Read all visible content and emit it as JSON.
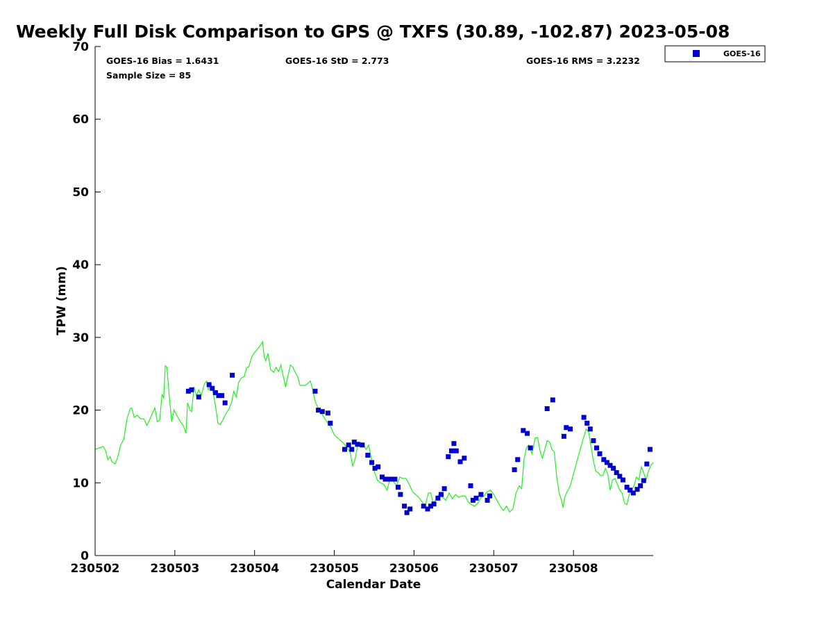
{
  "chart_data": {
    "type": "scatter",
    "title": "Weekly Full Disk Comparison to GPS @ TXFS (30.89, -102.87) 2023-05-08",
    "xlabel": "Calendar Date",
    "ylabel": "TPW (mm)",
    "xlim": [
      0,
      7
    ],
    "ylim": [
      0,
      70
    ],
    "x_ticks": [
      {
        "value": 0,
        "label": "230502"
      },
      {
        "value": 1,
        "label": "230503"
      },
      {
        "value": 2,
        "label": "230504"
      },
      {
        "value": 3,
        "label": "230505"
      },
      {
        "value": 4,
        "label": "230506"
      },
      {
        "value": 5,
        "label": "230507"
      },
      {
        "value": 6,
        "label": "230508"
      }
    ],
    "y_ticks": [
      0,
      10,
      20,
      30,
      40,
      50,
      60,
      70
    ],
    "legend": {
      "placement": "top-right outside",
      "entries": [
        "GOES-16"
      ]
    },
    "stats": {
      "bias": "GOES-16 Bias = 1.6431",
      "std": "GOES-16 StD = 2.773",
      "rms": "GOES-16 RMS = 3.2232",
      "sample": "Sample Size = 85"
    },
    "series": [
      {
        "name": "GOES-16",
        "kind": "scatter",
        "color": "#0000cc",
        "marker": "square",
        "points": [
          [
            1.17,
            22.6
          ],
          [
            1.21,
            22.8
          ],
          [
            1.3,
            21.8
          ],
          [
            1.43,
            23.5
          ],
          [
            1.47,
            23.0
          ],
          [
            1.51,
            22.4
          ],
          [
            1.55,
            22.0
          ],
          [
            1.59,
            22.0
          ],
          [
            1.63,
            21.0
          ],
          [
            1.72,
            24.8
          ],
          [
            2.76,
            22.6
          ],
          [
            2.8,
            20.0
          ],
          [
            2.85,
            19.8
          ],
          [
            2.92,
            19.6
          ],
          [
            2.95,
            18.2
          ],
          [
            3.13,
            14.6
          ],
          [
            3.18,
            15.2
          ],
          [
            3.22,
            14.6
          ],
          [
            3.25,
            15.6
          ],
          [
            3.29,
            15.3
          ],
          [
            3.35,
            15.2
          ],
          [
            3.42,
            13.8
          ],
          [
            3.47,
            12.8
          ],
          [
            3.51,
            12.0
          ],
          [
            3.55,
            12.2
          ],
          [
            3.6,
            10.8
          ],
          [
            3.64,
            10.5
          ],
          [
            3.68,
            10.5
          ],
          [
            3.72,
            10.5
          ],
          [
            3.76,
            10.5
          ],
          [
            3.8,
            9.4
          ],
          [
            3.83,
            8.4
          ],
          [
            3.88,
            6.8
          ],
          [
            3.91,
            5.9
          ],
          [
            3.95,
            6.4
          ],
          [
            4.12,
            6.8
          ],
          [
            4.17,
            6.4
          ],
          [
            4.21,
            6.8
          ],
          [
            4.25,
            7.1
          ],
          [
            4.3,
            7.9
          ],
          [
            4.34,
            8.4
          ],
          [
            4.38,
            9.2
          ],
          [
            4.43,
            13.6
          ],
          [
            4.47,
            14.4
          ],
          [
            4.5,
            15.4
          ],
          [
            4.53,
            14.4
          ],
          [
            4.58,
            12.9
          ],
          [
            4.63,
            13.4
          ],
          [
            4.71,
            9.6
          ],
          [
            4.74,
            7.6
          ],
          [
            4.78,
            7.9
          ],
          [
            4.84,
            8.4
          ],
          [
            4.92,
            7.6
          ],
          [
            4.95,
            8.2
          ],
          [
            5.26,
            11.8
          ],
          [
            5.3,
            13.2
          ],
          [
            5.37,
            17.2
          ],
          [
            5.42,
            16.8
          ],
          [
            5.46,
            14.8
          ],
          [
            5.67,
            20.2
          ],
          [
            5.74,
            21.4
          ],
          [
            5.88,
            16.4
          ],
          [
            5.91,
            17.6
          ],
          [
            5.96,
            17.4
          ],
          [
            6.13,
            19.0
          ],
          [
            6.17,
            18.2
          ],
          [
            6.21,
            17.4
          ],
          [
            6.25,
            15.8
          ],
          [
            6.29,
            14.8
          ],
          [
            6.33,
            14.0
          ],
          [
            6.38,
            13.2
          ],
          [
            6.42,
            12.8
          ],
          [
            6.46,
            12.4
          ],
          [
            6.5,
            12.0
          ],
          [
            6.54,
            11.4
          ],
          [
            6.58,
            10.9
          ],
          [
            6.62,
            10.4
          ],
          [
            6.67,
            9.4
          ],
          [
            6.71,
            9.0
          ],
          [
            6.75,
            8.6
          ],
          [
            6.8,
            9.1
          ],
          [
            6.84,
            9.6
          ],
          [
            6.88,
            10.3
          ],
          [
            6.92,
            12.6
          ],
          [
            6.96,
            14.6
          ]
        ]
      },
      {
        "name": "",
        "kind": "line",
        "color": "#22ee22",
        "points": [
          [
            0.0,
            14.6
          ],
          [
            0.05,
            14.8
          ],
          [
            0.1,
            15.0
          ],
          [
            0.13,
            14.5
          ],
          [
            0.16,
            13.2
          ],
          [
            0.19,
            13.6
          ],
          [
            0.21,
            12.9
          ],
          [
            0.25,
            12.6
          ],
          [
            0.28,
            13.4
          ],
          [
            0.32,
            15.2
          ],
          [
            0.36,
            16.0
          ],
          [
            0.4,
            18.8
          ],
          [
            0.44,
            20.2
          ],
          [
            0.46,
            20.3
          ],
          [
            0.49,
            19.0
          ],
          [
            0.53,
            19.3
          ],
          [
            0.57,
            18.8
          ],
          [
            0.61,
            18.8
          ],
          [
            0.65,
            17.9
          ],
          [
            0.68,
            18.6
          ],
          [
            0.72,
            19.6
          ],
          [
            0.75,
            20.3
          ],
          [
            0.78,
            18.4
          ],
          [
            0.81,
            18.6
          ],
          [
            0.84,
            22.2
          ],
          [
            0.86,
            21.6
          ],
          [
            0.88,
            26.1
          ],
          [
            0.9,
            25.9
          ],
          [
            0.93,
            22.0
          ],
          [
            0.96,
            18.4
          ],
          [
            0.99,
            20.0
          ],
          [
            1.03,
            19.2
          ],
          [
            1.07,
            18.4
          ],
          [
            1.11,
            17.8
          ],
          [
            1.14,
            16.8
          ],
          [
            1.16,
            21.0
          ],
          [
            1.19,
            20.0
          ],
          [
            1.21,
            19.8
          ],
          [
            1.24,
            23.2
          ],
          [
            1.27,
            22.0
          ],
          [
            1.3,
            22.8
          ],
          [
            1.33,
            22.0
          ],
          [
            1.37,
            23.6
          ],
          [
            1.4,
            24.0
          ],
          [
            1.42,
            22.8
          ],
          [
            1.45,
            23.6
          ],
          [
            1.48,
            22.4
          ],
          [
            1.51,
            20.6
          ],
          [
            1.54,
            18.2
          ],
          [
            1.57,
            18.0
          ],
          [
            1.6,
            18.6
          ],
          [
            1.64,
            19.5
          ],
          [
            1.68,
            20.2
          ],
          [
            1.71,
            21.0
          ],
          [
            1.74,
            22.6
          ],
          [
            1.77,
            21.8
          ],
          [
            1.8,
            23.8
          ],
          [
            1.83,
            24.4
          ],
          [
            1.87,
            24.6
          ],
          [
            1.9,
            25.8
          ],
          [
            1.93,
            26.0
          ],
          [
            1.96,
            27.2
          ],
          [
            1.99,
            27.8
          ],
          [
            2.03,
            28.3
          ],
          [
            2.07,
            28.9
          ],
          [
            2.1,
            29.4
          ],
          [
            2.12,
            27.4
          ],
          [
            2.14,
            26.8
          ],
          [
            2.17,
            27.8
          ],
          [
            2.2,
            25.6
          ],
          [
            2.24,
            25.2
          ],
          [
            2.27,
            25.9
          ],
          [
            2.3,
            25.3
          ],
          [
            2.33,
            26.2
          ],
          [
            2.36,
            24.6
          ],
          [
            2.39,
            23.2
          ],
          [
            2.42,
            24.8
          ],
          [
            2.45,
            26.2
          ],
          [
            2.48,
            25.9
          ],
          [
            2.51,
            25.2
          ],
          [
            2.54,
            24.6
          ],
          [
            2.57,
            23.4
          ],
          [
            2.6,
            23.4
          ],
          [
            2.63,
            23.4
          ],
          [
            2.66,
            23.6
          ],
          [
            2.7,
            24.0
          ],
          [
            2.73,
            22.8
          ],
          [
            2.76,
            21.2
          ],
          [
            2.8,
            20.2
          ],
          [
            2.84,
            19.6
          ],
          [
            2.88,
            18.8
          ],
          [
            2.92,
            18.2
          ],
          [
            2.96,
            17.6
          ],
          [
            3.0,
            16.6
          ],
          [
            3.04,
            16.2
          ],
          [
            3.08,
            15.8
          ],
          [
            3.12,
            15.4
          ],
          [
            3.16,
            14.8
          ],
          [
            3.2,
            14.2
          ],
          [
            3.23,
            12.3
          ],
          [
            3.26,
            13.2
          ],
          [
            3.29,
            15.0
          ],
          [
            3.32,
            15.6
          ],
          [
            3.36,
            15.3
          ],
          [
            3.4,
            14.6
          ],
          [
            3.43,
            15.2
          ],
          [
            3.46,
            13.6
          ],
          [
            3.5,
            11.6
          ],
          [
            3.54,
            10.4
          ],
          [
            3.58,
            10.0
          ],
          [
            3.62,
            9.8
          ],
          [
            3.66,
            9.0
          ],
          [
            3.7,
            10.6
          ],
          [
            3.74,
            10.2
          ],
          [
            3.78,
            9.6
          ],
          [
            3.82,
            10.8
          ],
          [
            3.86,
            10.6
          ],
          [
            3.9,
            10.6
          ],
          [
            3.94,
            9.8
          ],
          [
            3.98,
            8.8
          ],
          [
            4.02,
            8.4
          ],
          [
            4.06,
            8.0
          ],
          [
            4.1,
            7.4
          ],
          [
            4.14,
            6.8
          ],
          [
            4.18,
            8.6
          ],
          [
            4.21,
            8.6
          ],
          [
            4.24,
            7.2
          ],
          [
            4.28,
            7.8
          ],
          [
            4.32,
            8.6
          ],
          [
            4.36,
            8.0
          ],
          [
            4.4,
            7.6
          ],
          [
            4.44,
            8.6
          ],
          [
            4.48,
            7.8
          ],
          [
            4.52,
            8.4
          ],
          [
            4.56,
            8.0
          ],
          [
            4.6,
            8.2
          ],
          [
            4.64,
            8.2
          ],
          [
            4.68,
            7.4
          ],
          [
            4.72,
            7.0
          ],
          [
            4.76,
            6.8
          ],
          [
            4.8,
            7.2
          ],
          [
            4.84,
            8.0
          ],
          [
            4.88,
            8.2
          ],
          [
            4.92,
            8.8
          ],
          [
            4.96,
            9.0
          ],
          [
            5.0,
            8.4
          ],
          [
            5.04,
            7.6
          ],
          [
            5.08,
            6.8
          ],
          [
            5.12,
            6.2
          ],
          [
            5.16,
            6.8
          ],
          [
            5.2,
            6.0
          ],
          [
            5.24,
            6.4
          ],
          [
            5.28,
            8.6
          ],
          [
            5.32,
            9.6
          ],
          [
            5.35,
            9.2
          ],
          [
            5.38,
            13.2
          ],
          [
            5.41,
            14.8
          ],
          [
            5.44,
            15.2
          ],
          [
            5.48,
            14.0
          ],
          [
            5.52,
            16.2
          ],
          [
            5.55,
            16.2
          ],
          [
            5.58,
            14.4
          ],
          [
            5.61,
            13.4
          ],
          [
            5.64,
            14.6
          ],
          [
            5.67,
            15.8
          ],
          [
            5.7,
            15.6
          ],
          [
            5.73,
            14.6
          ],
          [
            5.76,
            14.2
          ],
          [
            5.79,
            10.8
          ],
          [
            5.82,
            8.6
          ],
          [
            5.85,
            7.6
          ],
          [
            5.87,
            6.6
          ],
          [
            5.89,
            8.0
          ],
          [
            5.92,
            8.8
          ],
          [
            5.96,
            9.6
          ],
          [
            6.0,
            11.2
          ],
          [
            6.04,
            12.8
          ],
          [
            6.08,
            14.4
          ],
          [
            6.12,
            16.0
          ],
          [
            6.16,
            17.4
          ],
          [
            6.19,
            17.0
          ],
          [
            6.22,
            15.0
          ],
          [
            6.25,
            13.0
          ],
          [
            6.28,
            11.6
          ],
          [
            6.31,
            11.4
          ],
          [
            6.34,
            11.0
          ],
          [
            6.37,
            11.0
          ],
          [
            6.4,
            12.0
          ],
          [
            6.43,
            11.2
          ],
          [
            6.46,
            9.0
          ],
          [
            6.49,
            10.4
          ],
          [
            6.52,
            10.6
          ],
          [
            6.55,
            9.8
          ],
          [
            6.58,
            9.0
          ],
          [
            6.61,
            8.6
          ],
          [
            6.64,
            7.2
          ],
          [
            6.67,
            7.0
          ],
          [
            6.7,
            8.4
          ],
          [
            6.73,
            9.0
          ],
          [
            6.76,
            9.6
          ],
          [
            6.79,
            10.8
          ],
          [
            6.82,
            10.4
          ],
          [
            6.85,
            12.2
          ],
          [
            6.88,
            11.4
          ],
          [
            6.91,
            10.4
          ],
          [
            6.94,
            11.6
          ],
          [
            6.97,
            12.4
          ],
          [
            7.0,
            12.8
          ]
        ]
      }
    ]
  }
}
